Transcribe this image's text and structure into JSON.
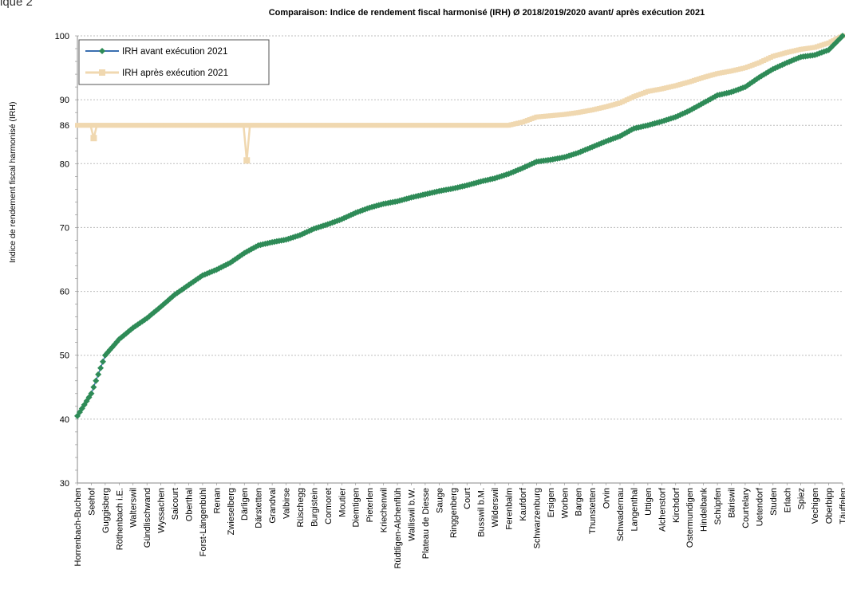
{
  "figure_label": "ique 2",
  "chart_data": {
    "type": "line",
    "title": "Comparaison: Indice de rendement fiscal harmonisé (IRH) Ø 2018/2019/2020 avant/ après exécution 2021",
    "xlabel": "",
    "ylabel": "Indice de rendement fiscal harmonisé (IRH)",
    "ylim": [
      30,
      100
    ],
    "yticks": [
      30,
      40,
      50,
      60,
      70,
      80,
      86,
      90,
      100
    ],
    "grid": true,
    "legend_position": "top-left",
    "categories": [
      "Horrenbach-Buchen",
      "Seehof",
      "Guggisberg",
      "Röthenbach i.E.",
      "Walterswil",
      "Gündlischwand",
      "Wyssachen",
      "Saicourt",
      "Oberthal",
      "Forst-Längenbühl",
      "Renan",
      "Zwieselberg",
      "Därligen",
      "Därstetten",
      "Grandval",
      "Valbirse",
      "Rüschegg",
      "Burgistein",
      "Cormoret",
      "Moutier",
      "Diemtigen",
      "Pieterlen",
      "Kriechenwil",
      "Rüdtligen-Alchenflüh",
      "Walliswil b.W.",
      "Plateau de Diesse",
      "Sauge",
      "Ringgenberg",
      "Court",
      "Busswil b.M.",
      "Wilderswil",
      "Ferenbalm",
      "Kaufdorf",
      "Schwarzenburg",
      "Ersigen",
      "Worben",
      "Bargen",
      "Thunstetten",
      "Orvin",
      "Schwadernau",
      "Langenthal",
      "Uttigen",
      "Alchenstorf",
      "Kirchdorf",
      "Ostermundigen",
      "Hindelbank",
      "Schüpfen",
      "Bäriswil",
      "Courtelary",
      "Uetendorf",
      "Studen",
      "Erlach",
      "Spiez",
      "Vechigen",
      "Oberbipp",
      "Täuffelen"
    ],
    "series": [
      {
        "name": "IRH avant exécution 2021",
        "color": "#2e8b57",
        "values": [
          40.5,
          44.0,
          50.0,
          52.5,
          54.3,
          55.8,
          57.6,
          59.5,
          61.0,
          62.5,
          63.4,
          64.5,
          66.0,
          67.2,
          67.7,
          68.1,
          68.8,
          69.8,
          70.5,
          71.3,
          72.3,
          73.1,
          73.7,
          74.1,
          74.7,
          75.2,
          75.7,
          76.1,
          76.6,
          77.2,
          77.7,
          78.4,
          79.3,
          80.3,
          80.6,
          81.0,
          81.7,
          82.6,
          83.5,
          84.3,
          85.5,
          86.0,
          86.6,
          87.3,
          88.3,
          89.5,
          90.7,
          91.2,
          92.0,
          93.5,
          94.8,
          95.8,
          96.7,
          97.0,
          97.8,
          100.0
        ]
      },
      {
        "name": "IRH après exécution 2021",
        "color": "#f0d8b0",
        "values": [
          86,
          86,
          86,
          86,
          86,
          86,
          86,
          86,
          86,
          86,
          86,
          86,
          86,
          86,
          86,
          86,
          86,
          86,
          86,
          86,
          86,
          86,
          86,
          86,
          86,
          86,
          86,
          86,
          86,
          86,
          86,
          86,
          86.5,
          87.3,
          87.5,
          87.7,
          88.0,
          88.4,
          88.9,
          89.5,
          90.5,
          91.3,
          91.7,
          92.2,
          92.8,
          93.5,
          94.1,
          94.5,
          95.0,
          95.8,
          96.8,
          97.4,
          97.9,
          98.2,
          98.9,
          100.0
        ],
        "dips": [
          {
            "category": "Seehof",
            "value": 84.0
          },
          {
            "category": "Därligen",
            "value": 80.5
          }
        ]
      }
    ]
  }
}
